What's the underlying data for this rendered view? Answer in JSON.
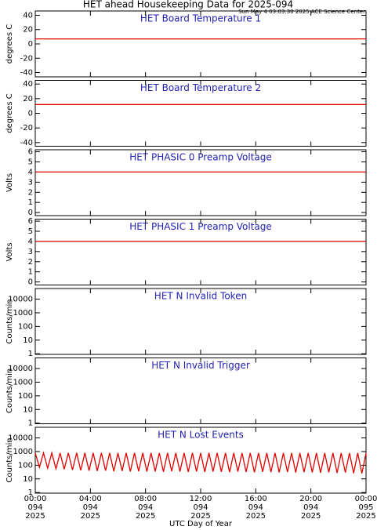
{
  "title": "HET ahead Housekeeping Data for 2025-094",
  "subtitle": "Sun May  4 03:03:30 2025 ACE Science Center",
  "chart_data": [
    {
      "type": "line",
      "title": "HET Board Temperature 1",
      "ylabel": "degrees C",
      "ylim": [
        -46,
        46
      ],
      "yticks": [
        -40,
        -20,
        0,
        20,
        40
      ],
      "xlim": [
        0,
        24
      ],
      "series": [
        {
          "color": "#e00000",
          "x": [
            0,
            24
          ],
          "values": [
            7,
            7
          ]
        }
      ]
    },
    {
      "type": "line",
      "title": "HET Board Temperature 2",
      "ylabel": "degrees C",
      "ylim": [
        -45,
        45
      ],
      "yticks": [
        -40,
        -20,
        0,
        20,
        40
      ],
      "xlim": [
        0,
        24
      ],
      "series": [
        {
          "color": "#e00000",
          "x": [
            0,
            24
          ],
          "values": [
            12,
            12
          ]
        }
      ]
    },
    {
      "type": "line",
      "title": "HET PHASIC 0 Preamp Voltage",
      "ylabel": "Volts",
      "ylim": [
        -0.3,
        6.2
      ],
      "yticks": [
        0,
        1,
        2,
        3,
        4,
        5,
        6
      ],
      "xlim": [
        0,
        24
      ],
      "series": [
        {
          "color": "#e00000",
          "x": [
            0,
            24
          ],
          "values": [
            4,
            4
          ]
        }
      ]
    },
    {
      "type": "line",
      "title": "HET PHASIC 1 Preamp Voltage",
      "ylabel": "Volts",
      "ylim": [
        -0.3,
        6.2
      ],
      "yticks": [
        0,
        1,
        2,
        3,
        4,
        5,
        6
      ],
      "xlim": [
        0,
        24
      ],
      "series": [
        {
          "color": "#e00000",
          "x": [
            0,
            24
          ],
          "values": [
            4,
            4
          ]
        }
      ]
    },
    {
      "type": "line",
      "title": "HET N Invalid Token",
      "ylabel": "Counts/min",
      "log": true,
      "ylim": [
        0.9,
        60000
      ],
      "yticks": [
        1,
        10,
        100,
        1000,
        10000
      ],
      "xlim": [
        0,
        24
      ],
      "series": []
    },
    {
      "type": "line",
      "title": "HET N Invalid Trigger",
      "ylabel": "Counts/min",
      "log": true,
      "ylim": [
        0.9,
        60000
      ],
      "yticks": [
        1,
        10,
        100,
        1000,
        10000
      ],
      "xlim": [
        0,
        24
      ],
      "series": []
    },
    {
      "type": "line",
      "title": "HET N Lost Events",
      "ylabel": "Counts/min",
      "log": true,
      "ylim": [
        0.9,
        60000
      ],
      "yticks": [
        1,
        10,
        100,
        1000,
        10000
      ],
      "xlim": [
        0,
        24
      ],
      "xlabel": "UTC Day of Year",
      "xticks": [
        {
          "value": 0,
          "label": "00:00"
        },
        {
          "value": 4,
          "label": "04:00"
        },
        {
          "value": 8,
          "label": "08:00"
        },
        {
          "value": 12,
          "label": "12:00"
        },
        {
          "value": 16,
          "label": "16:00"
        },
        {
          "value": 20,
          "label": "20:00"
        },
        {
          "value": 24,
          "label": "00:00"
        }
      ],
      "xtick_days": [
        "094",
        "094",
        "094",
        "094",
        "094",
        "094",
        "095"
      ],
      "xtick_years": [
        "2025",
        "2025",
        "2025",
        "2025",
        "2025",
        "2025",
        "2025"
      ],
      "series": [
        {
          "color": "#e00000",
          "x": [
            0,
            0.3,
            0.6,
            0.9,
            1.2,
            1.5,
            1.8,
            2.1,
            2.4,
            2.7,
            3,
            3.3,
            3.6,
            3.9,
            4.2,
            4.5,
            4.8,
            5.1,
            5.4,
            5.7,
            6,
            6.3,
            6.6,
            6.9,
            7.2,
            7.5,
            7.8,
            8.1,
            8.4,
            8.7,
            9,
            9.3,
            9.6,
            9.9,
            10.2,
            10.5,
            10.8,
            11.1,
            11.4,
            11.7,
            12,
            12.3,
            12.6,
            12.9,
            13.2,
            13.5,
            13.8,
            14.1,
            14.4,
            14.7,
            15,
            15.3,
            15.6,
            15.9,
            16.2,
            16.5,
            16.8,
            17.1,
            17.4,
            17.7,
            18,
            18.3,
            18.6,
            18.9,
            19.2,
            19.5,
            19.8,
            20.1,
            20.4,
            20.7,
            21,
            21.3,
            21.6,
            21.9,
            22.2,
            22.5,
            22.8,
            23.1,
            23.4,
            23.7,
            24
          ],
          "values": [
            800,
            70,
            800,
            60,
            800,
            55,
            800,
            50,
            800,
            45,
            800,
            42,
            800,
            40,
            800,
            38,
            800,
            40,
            800,
            36,
            800,
            38,
            800,
            35,
            800,
            36,
            800,
            34,
            800,
            35,
            800,
            33,
            800,
            36,
            800,
            34,
            800,
            33,
            800,
            35,
            800,
            32,
            800,
            34,
            800,
            33,
            800,
            31,
            800,
            34,
            800,
            32,
            800,
            30,
            800,
            33,
            800,
            31,
            800,
            30,
            800,
            32,
            800,
            29,
            800,
            31,
            800,
            30,
            800,
            28,
            800,
            30,
            800,
            27,
            800,
            29,
            800,
            26,
            800,
            25,
            800
          ]
        }
      ]
    }
  ]
}
